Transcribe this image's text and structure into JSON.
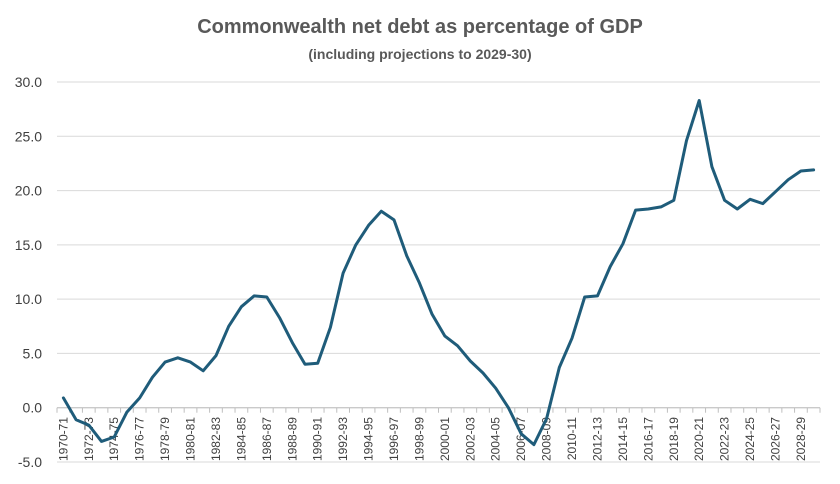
{
  "chart_data": {
    "type": "line",
    "title": "Commonwealth net debt as percentage of GDP",
    "subtitle": "(including projections to 2029-30)",
    "xlabel": "",
    "ylabel": "",
    "ylim": [
      -5.0,
      30.0
    ],
    "yticks": [
      "30.0",
      "25.0",
      "20.0",
      "15.0",
      "10.0",
      "5.0",
      "0.0",
      "-5.0"
    ],
    "grid": true,
    "legend": "none",
    "color": "#1f5c7a",
    "x": [
      "1970-71",
      "1971-72",
      "1972-73",
      "1973-74",
      "1974-75",
      "1975-76",
      "1976-77",
      "1977-78",
      "1978-79",
      "1979-80",
      "1980-81",
      "1981-82",
      "1982-83",
      "1983-84",
      "1984-85",
      "1985-86",
      "1986-87",
      "1987-88",
      "1988-89",
      "1989-90",
      "1990-91",
      "1991-92",
      "1992-93",
      "1993-94",
      "1994-95",
      "1995-96",
      "1996-97",
      "1997-98",
      "1998-99",
      "1999-00",
      "2000-01",
      "2001-02",
      "2002-03",
      "2003-04",
      "2004-05",
      "2005-06",
      "2006-07",
      "2007-08",
      "2008-09",
      "2009-10",
      "2010-11",
      "2011-12",
      "2012-13",
      "2013-14",
      "2014-15",
      "2015-16",
      "2016-17",
      "2017-18",
      "2018-19",
      "2019-20",
      "2020-21",
      "2021-22",
      "2022-23",
      "2023-24",
      "2024-25",
      "2025-26",
      "2026-27",
      "2027-28",
      "2028-29",
      "2029-30"
    ],
    "xtick_labels": [
      "1970-71",
      "1972-73",
      "1974-75",
      "1976-77",
      "1978-79",
      "1980-81",
      "1982-83",
      "1984-85",
      "1986-87",
      "1988-89",
      "1990-91",
      "1992-93",
      "1994-95",
      "1996-97",
      "1998-99",
      "2000-01",
      "2002-03",
      "2004-05",
      "2006-07",
      "2008-09",
      "2010-11",
      "2012-13",
      "2014-15",
      "2016-17",
      "2018-19",
      "2020-21",
      "2022-23",
      "2024-25",
      "2026-27",
      "2028-29"
    ],
    "series": [
      {
        "values": [
          0.9,
          -1.1,
          -1.6,
          -3.1,
          -2.7,
          -0.4,
          0.9,
          2.8,
          4.2,
          4.6,
          4.2,
          3.4,
          4.8,
          7.5,
          9.3,
          10.3,
          10.2,
          8.3,
          6.0,
          4.0,
          4.1,
          7.4,
          12.4,
          15.0,
          16.8,
          18.1,
          17.3,
          14.0,
          11.5,
          8.6,
          6.6,
          5.7,
          4.3,
          3.2,
          1.8,
          0.0,
          -2.4,
          -3.4,
          -1.0,
          3.7,
          6.4,
          10.2,
          10.3,
          13.0,
          15.1,
          18.2,
          18.3,
          18.5,
          19.1,
          24.6,
          28.3,
          22.2,
          19.1,
          18.3,
          19.2,
          18.8,
          19.9,
          21.0,
          21.8,
          21.9
        ]
      }
    ]
  }
}
